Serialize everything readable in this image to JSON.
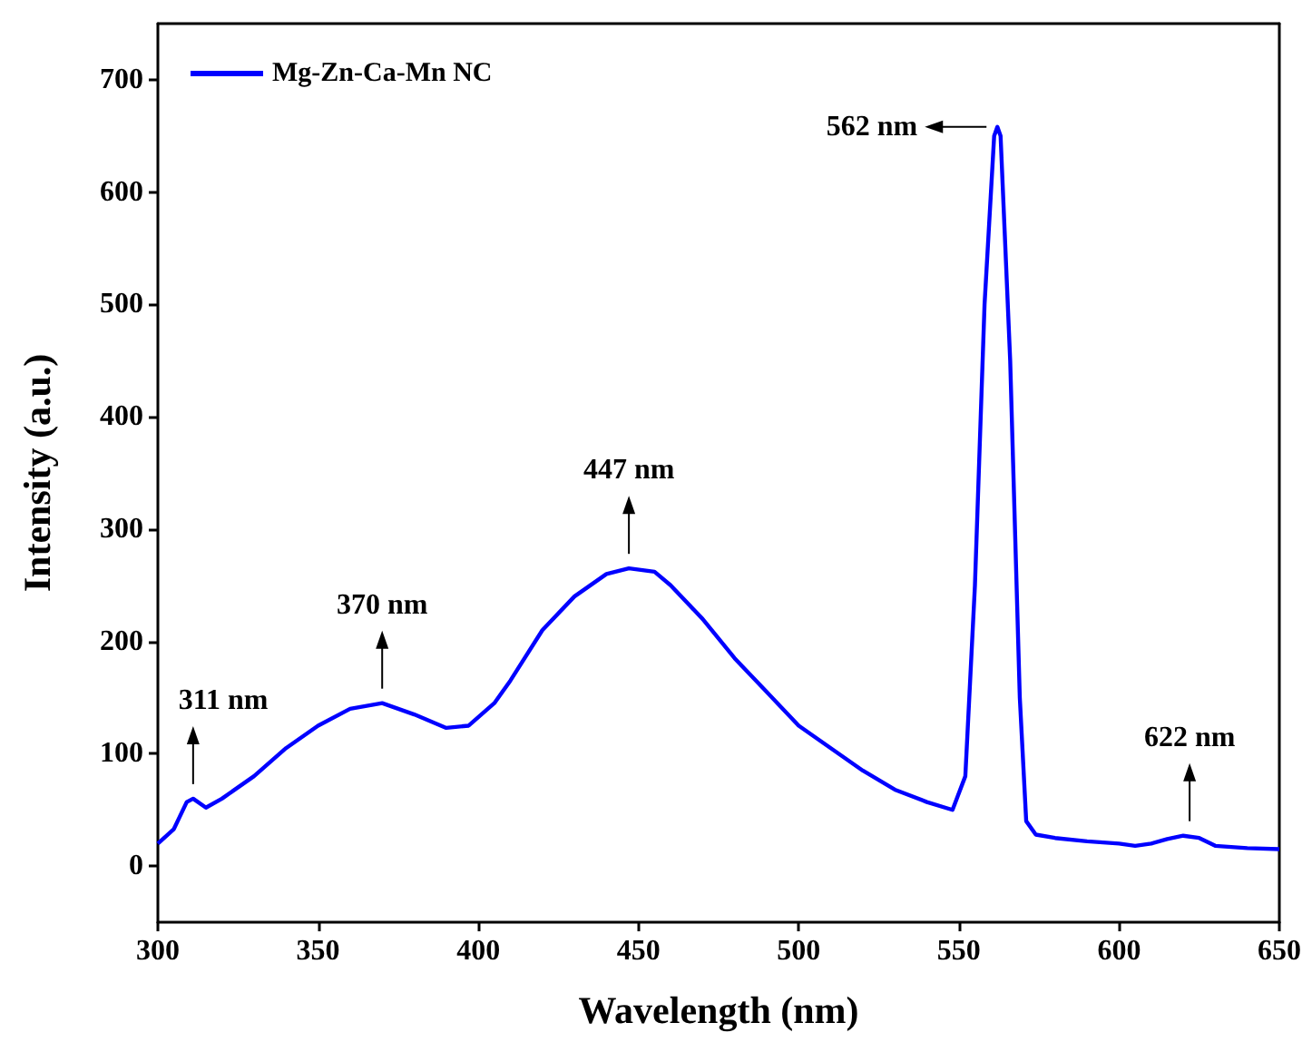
{
  "chart_data": {
    "type": "line",
    "xlabel": "Wavelength (nm)",
    "ylabel": "Intensity (a.u.)",
    "xlim": [
      300,
      650
    ],
    "xticks": [
      300,
      350,
      400,
      450,
      500,
      550,
      600,
      650
    ],
    "ylim": [
      -50,
      750
    ],
    "yticks": [
      0,
      100,
      200,
      300,
      400,
      500,
      600,
      700
    ],
    "grid": false,
    "legend": "top left",
    "marker": "none",
    "line_style": "solid",
    "annotations": [
      {
        "text": "311 nm",
        "x": 311,
        "y": 60
      },
      {
        "text": "370 nm",
        "x": 370,
        "y": 145
      },
      {
        "text": "447 nm",
        "x": 447,
        "y": 265
      },
      {
        "text": "562 nm",
        "x": 562,
        "y": 658
      },
      {
        "text": "622 nm",
        "x": 622,
        "y": 27
      }
    ],
    "series": [
      {
        "name": "Mg-Zn-Ca-Mn NC",
        "color": "#0000ff",
        "x": [
          300,
          305,
          309,
          311,
          315,
          320,
          330,
          340,
          350,
          360,
          370,
          380,
          390,
          397,
          405,
          410,
          420,
          430,
          440,
          447,
          455,
          460,
          470,
          480,
          490,
          500,
          510,
          520,
          530,
          540,
          548,
          552,
          555,
          558,
          561,
          562,
          563,
          566,
          569,
          571,
          574,
          580,
          590,
          600,
          605,
          610,
          615,
          620,
          625,
          630,
          640,
          650
        ],
        "values": [
          20,
          33,
          57,
          60,
          52,
          60,
          80,
          105,
          125,
          140,
          145,
          135,
          123,
          125,
          145,
          165,
          210,
          240,
          260,
          265,
          262,
          250,
          220,
          185,
          155,
          125,
          105,
          85,
          68,
          57,
          50,
          80,
          250,
          500,
          650,
          658,
          650,
          450,
          150,
          40,
          28,
          25,
          22,
          20,
          18,
          20,
          24,
          27,
          25,
          18,
          16,
          15
        ]
      }
    ]
  }
}
